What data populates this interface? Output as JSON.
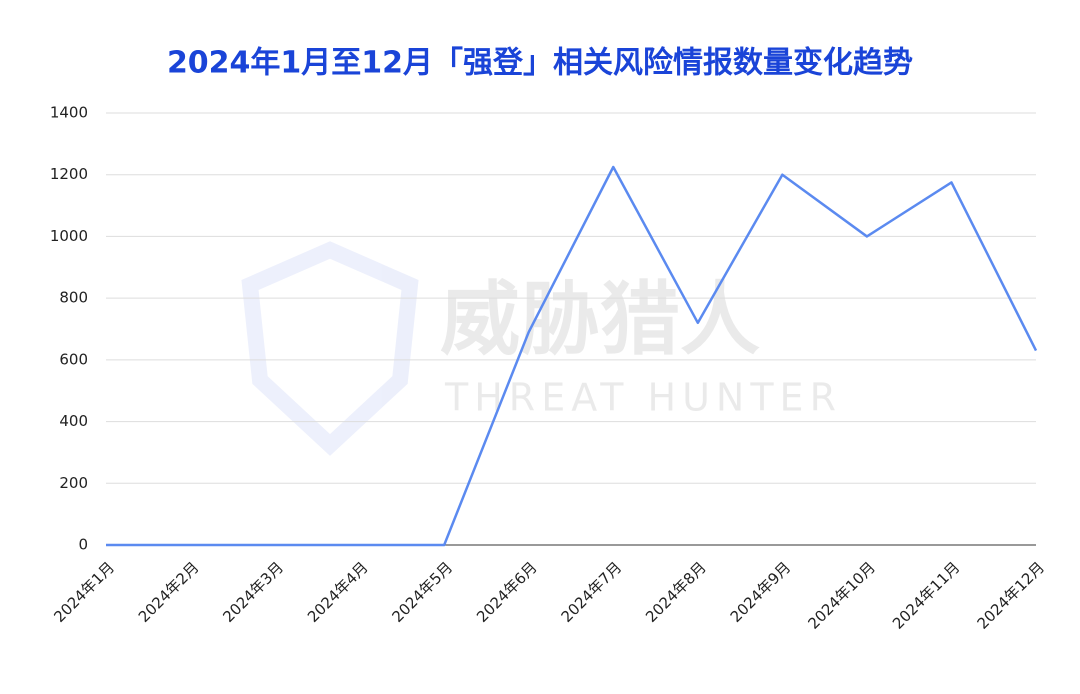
{
  "chart_data": {
    "type": "line",
    "title": "2024年1月至12月「强登」相关风险情报数量变化趋势",
    "watermark": "威胁猎人",
    "watermark_sub": "THREAT HUNTER",
    "categories": [
      "2024年1月",
      "2024年2月",
      "2024年3月",
      "2024年4月",
      "2024年5月",
      "2024年6月",
      "2024年7月",
      "2024年8月",
      "2024年9月",
      "2024年10月",
      "2024年11月",
      "2024年12月"
    ],
    "values": [
      0,
      0,
      0,
      0,
      0,
      690,
      1225,
      720,
      1200,
      1000,
      1175,
      630
    ],
    "color": "#5b8af0",
    "ylim": [
      0,
      1400
    ],
    "yticks": [
      0,
      200,
      400,
      600,
      800,
      1000,
      1200,
      1400
    ],
    "grid": true
  }
}
